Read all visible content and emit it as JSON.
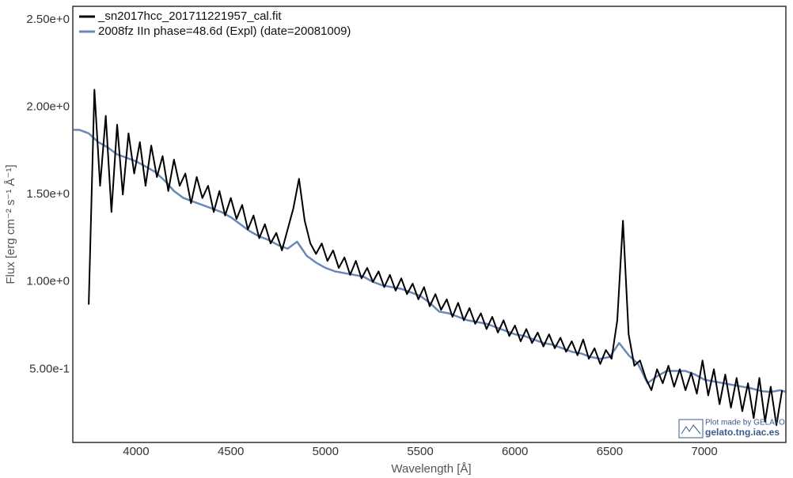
{
  "chart_data": {
    "type": "line",
    "xlabel": "Wavelength [Å]",
    "ylabel": "Flux [erg cm⁻² s⁻¹ Å⁻¹]",
    "xlim": [
      3666,
      7430
    ],
    "ylim": [
      0.081,
      2.577
    ],
    "xticks": [
      4000,
      4500,
      5000,
      5500,
      6000,
      6500,
      7000
    ],
    "yticks": [
      {
        "value": 0.5,
        "label": "5.00e-1"
      },
      {
        "value": 1.0,
        "label": "1.00e+0"
      },
      {
        "value": 1.5,
        "label": "1.50e+0"
      },
      {
        "value": 2.0,
        "label": "2.00e+0"
      },
      {
        "value": 2.5,
        "label": "2.50e+0"
      }
    ],
    "grid": false,
    "legend": "upper left",
    "annotations": [
      "Plot made by GELATO",
      "gelato.tng.iac.es"
    ],
    "series": [
      {
        "name": "_sn2017hcc_201711221957_cal.fit",
        "color": "#000000",
        "x": [
          3750,
          3780,
          3810,
          3840,
          3870,
          3900,
          3930,
          3960,
          3990,
          4020,
          4050,
          4080,
          4110,
          4140,
          4170,
          4200,
          4230,
          4260,
          4290,
          4320,
          4350,
          4380,
          4410,
          4440,
          4470,
          4500,
          4530,
          4560,
          4590,
          4620,
          4650,
          4680,
          4710,
          4740,
          4770,
          4800,
          4830,
          4860,
          4890,
          4920,
          4950,
          4980,
          5010,
          5040,
          5070,
          5100,
          5130,
          5160,
          5190,
          5220,
          5250,
          5280,
          5310,
          5340,
          5370,
          5400,
          5430,
          5460,
          5490,
          5520,
          5550,
          5580,
          5610,
          5640,
          5670,
          5700,
          5730,
          5760,
          5790,
          5820,
          5850,
          5880,
          5910,
          5940,
          5970,
          6000,
          6030,
          6060,
          6090,
          6120,
          6150,
          6180,
          6210,
          6240,
          6270,
          6300,
          6330,
          6360,
          6390,
          6420,
          6450,
          6480,
          6510,
          6540,
          6570,
          6600,
          6630,
          6660,
          6690,
          6720,
          6750,
          6780,
          6810,
          6840,
          6870,
          6900,
          6930,
          6960,
          6990,
          7020,
          7050,
          7080,
          7110,
          7140,
          7170,
          7200,
          7230,
          7260,
          7290,
          7320,
          7350,
          7380,
          7410
        ],
        "values": [
          0.87,
          2.1,
          1.55,
          1.95,
          1.4,
          1.9,
          1.5,
          1.85,
          1.62,
          1.8,
          1.55,
          1.78,
          1.6,
          1.72,
          1.52,
          1.7,
          1.55,
          1.62,
          1.45,
          1.6,
          1.48,
          1.55,
          1.4,
          1.52,
          1.38,
          1.48,
          1.36,
          1.44,
          1.3,
          1.38,
          1.25,
          1.33,
          1.22,
          1.28,
          1.18,
          1.3,
          1.42,
          1.59,
          1.35,
          1.22,
          1.16,
          1.22,
          1.12,
          1.18,
          1.08,
          1.14,
          1.04,
          1.12,
          1.02,
          1.08,
          1.0,
          1.06,
          0.97,
          1.04,
          0.95,
          1.02,
          0.93,
          0.99,
          0.9,
          0.97,
          0.86,
          0.93,
          0.84,
          0.9,
          0.8,
          0.88,
          0.78,
          0.85,
          0.76,
          0.82,
          0.73,
          0.8,
          0.71,
          0.78,
          0.69,
          0.75,
          0.66,
          0.73,
          0.65,
          0.71,
          0.63,
          0.7,
          0.62,
          0.68,
          0.6,
          0.66,
          0.58,
          0.67,
          0.56,
          0.62,
          0.53,
          0.61,
          0.56,
          0.78,
          1.35,
          0.7,
          0.52,
          0.55,
          0.45,
          0.38,
          0.5,
          0.42,
          0.52,
          0.4,
          0.5,
          0.38,
          0.48,
          0.36,
          0.55,
          0.35,
          0.5,
          0.3,
          0.47,
          0.28,
          0.45,
          0.26,
          0.42,
          0.22,
          0.45,
          0.2,
          0.4,
          0.18,
          0.38
        ]
      },
      {
        "name": "2008fz  IIn  phase=48.6d (Expl)  (date=20081009)",
        "color": "#6b87b8",
        "x": [
          3670,
          3700,
          3750,
          3800,
          3850,
          3900,
          3950,
          4000,
          4050,
          4100,
          4150,
          4200,
          4250,
          4300,
          4350,
          4400,
          4450,
          4500,
          4550,
          4600,
          4650,
          4700,
          4750,
          4800,
          4850,
          4900,
          4950,
          5000,
          5050,
          5100,
          5150,
          5200,
          5250,
          5300,
          5350,
          5400,
          5450,
          5500,
          5550,
          5600,
          5650,
          5700,
          5750,
          5800,
          5850,
          5900,
          5950,
          6000,
          6050,
          6100,
          6150,
          6200,
          6250,
          6300,
          6350,
          6400,
          6450,
          6500,
          6550,
          6600,
          6650,
          6700,
          6750,
          6800,
          6850,
          6900,
          6950,
          7000,
          7050,
          7100,
          7150,
          7200,
          7250,
          7300,
          7350,
          7400,
          7430
        ],
        "values": [
          1.87,
          1.87,
          1.85,
          1.8,
          1.77,
          1.73,
          1.71,
          1.69,
          1.66,
          1.63,
          1.58,
          1.52,
          1.48,
          1.46,
          1.44,
          1.42,
          1.4,
          1.37,
          1.33,
          1.29,
          1.26,
          1.24,
          1.21,
          1.19,
          1.23,
          1.15,
          1.11,
          1.08,
          1.06,
          1.05,
          1.04,
          1.03,
          1.0,
          0.98,
          0.97,
          0.96,
          0.94,
          0.92,
          0.88,
          0.83,
          0.82,
          0.8,
          0.78,
          0.77,
          0.76,
          0.74,
          0.72,
          0.7,
          0.69,
          0.67,
          0.65,
          0.64,
          0.62,
          0.6,
          0.59,
          0.57,
          0.56,
          0.57,
          0.65,
          0.58,
          0.53,
          0.42,
          0.46,
          0.49,
          0.49,
          0.49,
          0.47,
          0.44,
          0.43,
          0.42,
          0.41,
          0.4,
          0.39,
          0.375,
          0.37,
          0.38,
          0.37
        ]
      }
    ]
  }
}
